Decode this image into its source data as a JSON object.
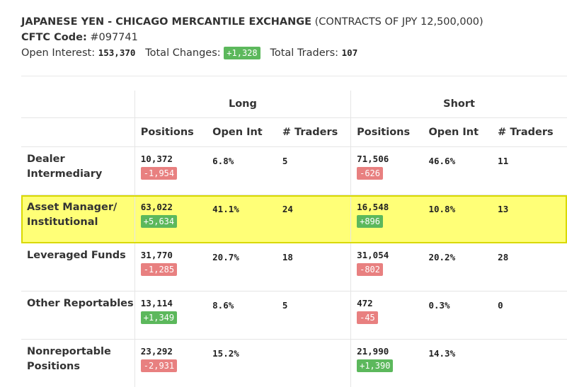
{
  "header": {
    "title": "JAPANESE YEN - CHICAGO MERCANTILE EXCHANGE",
    "contract": "(CONTRACTS OF JPY 12,500,000)",
    "cftc_label": "CFTC Code:",
    "cftc_code": "#097741",
    "oi_label": "Open Interest:",
    "oi_value": "153,370",
    "changes_label": "Total Changes:",
    "changes_value": "+1,328",
    "traders_label": "Total Traders:",
    "traders_value": "107"
  },
  "table": {
    "groups": [
      "Long",
      "Short"
    ],
    "columns": [
      "Positions",
      "Open Int",
      "# Traders",
      "Positions",
      "Open Int",
      "# Traders"
    ],
    "rows": [
      {
        "label": "Dealer Intermediary",
        "long": {
          "pos": "10,372",
          "chg": "-1,954",
          "oi": "6.8%",
          "tr": "5"
        },
        "short": {
          "pos": "71,506",
          "chg": "-626",
          "oi": "46.6%",
          "tr": "11"
        }
      },
      {
        "label": "Asset Manager/ Institutional",
        "long": {
          "pos": "63,022",
          "chg": "+5,634",
          "oi": "41.1%",
          "tr": "24"
        },
        "short": {
          "pos": "16,548",
          "chg": "+896",
          "oi": "10.8%",
          "tr": "13"
        }
      },
      {
        "label": "Leveraged Funds",
        "long": {
          "pos": "31,770",
          "chg": "-1,285",
          "oi": "20.7%",
          "tr": "18"
        },
        "short": {
          "pos": "31,054",
          "chg": "-802",
          "oi": "20.2%",
          "tr": "28"
        }
      },
      {
        "label": "Other Reportables",
        "long": {
          "pos": "13,114",
          "chg": "+1,349",
          "oi": "8.6%",
          "tr": "5"
        },
        "short": {
          "pos": "472",
          "chg": "-45",
          "oi": "0.3%",
          "tr": "0"
        }
      },
      {
        "label": "Nonreportable Positions",
        "long": {
          "pos": "23,292",
          "chg": "-2,931",
          "oi": "15.2%",
          "tr": ""
        },
        "short": {
          "pos": "21,990",
          "chg": "+1,390",
          "oi": "14.3%",
          "tr": ""
        }
      }
    ],
    "highlight_row": 1
  },
  "colors": {
    "positive": "#5cb85c",
    "negative": "#e88080",
    "highlight": "#ffff77"
  }
}
